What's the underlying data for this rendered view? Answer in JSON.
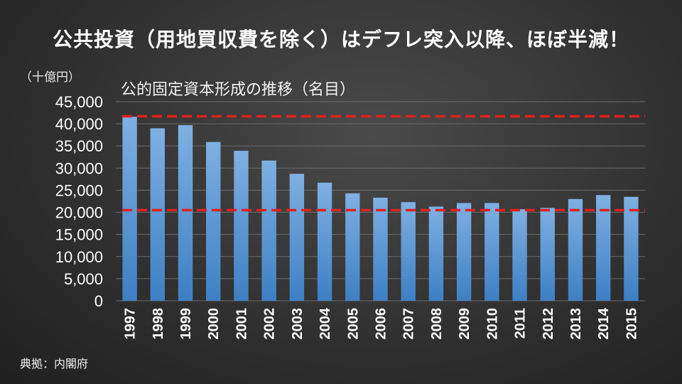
{
  "slide": {
    "title": "公共投資（用地買収費を除く）はデフレ突入以降、ほぼ半減！",
    "source": "典拠：内閣府"
  },
  "colors": {
    "bar_top": "#7fb0e2",
    "bar_bottom": "#3d7fc4",
    "reference_line": "#e0201e",
    "grid": "#6a6a6a"
  },
  "chart_data": {
    "type": "bar",
    "title": "公的固定資本形成の推移（名目）",
    "unit_label": "（十億円）",
    "ylim": [
      0,
      45000
    ],
    "yticks": [
      "0",
      "5,000",
      "10,000",
      "15,000",
      "20,000",
      "25,000",
      "30,000",
      "35,000",
      "40,000",
      "45,000"
    ],
    "ytick_values": [
      0,
      5000,
      10000,
      15000,
      20000,
      25000,
      30000,
      35000,
      40000,
      45000
    ],
    "categories": [
      "1997",
      "1998",
      "1999",
      "2000",
      "2001",
      "2002",
      "2003",
      "2004",
      "2005",
      "2006",
      "2007",
      "2008",
      "2009",
      "2010",
      "2011",
      "2012",
      "2013",
      "2014",
      "2015"
    ],
    "values": [
      41600,
      39000,
      39700,
      35900,
      33900,
      31700,
      28700,
      26700,
      24300,
      23300,
      22300,
      21300,
      22100,
      22100,
      20700,
      21000,
      23000,
      23900,
      23500
    ],
    "reference_lines": [
      41700,
      20500
    ],
    "grid": true,
    "legend": "none"
  }
}
